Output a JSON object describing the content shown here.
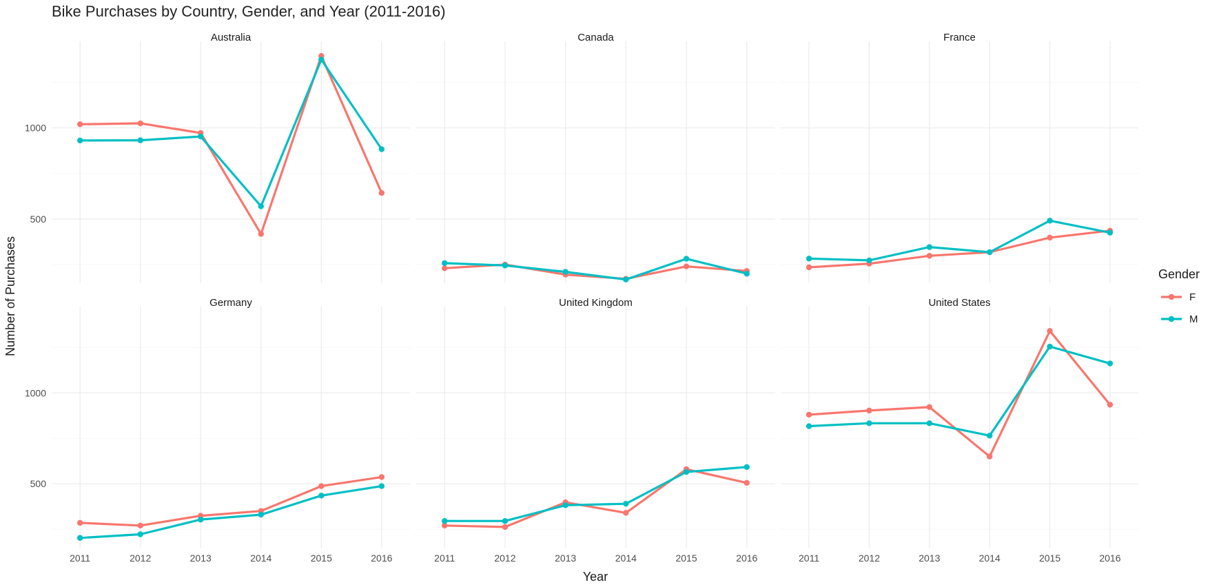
{
  "chart_data": {
    "type": "line",
    "title": "Bike Purchases by Country, Gender, and Year (2011-2016)",
    "xlabel": "Year",
    "ylabel": "Number of Purchases",
    "x": [
      2011,
      2012,
      2013,
      2014,
      2015,
      2016
    ],
    "x_ticks": [
      "2011",
      "2012",
      "2013",
      "2014",
      "2015",
      "2016"
    ],
    "y_ticks": [
      500,
      1000
    ],
    "y_tick_labels": [
      "500",
      "1000"
    ],
    "ylim": [
      148,
      1475
    ],
    "grid": true,
    "legend": {
      "title": "Gender",
      "position": "right",
      "entries": [
        {
          "name": "F",
          "color": "#F8766D"
        },
        {
          "name": "M",
          "color": "#00BFC4"
        }
      ]
    },
    "layout": "facet_wrap 2 rows x 3 columns, shared axes",
    "panels": [
      {
        "title": "Australia",
        "series": [
          {
            "name": "F",
            "color": "#F8766D",
            "values": [
              1020,
              1025,
              972,
              418,
              1395,
              643
            ]
          },
          {
            "name": "M",
            "color": "#00BFC4",
            "values": [
              931,
              932,
              953,
              570,
              1375,
              883
            ]
          }
        ]
      },
      {
        "title": "Canada",
        "series": [
          {
            "name": "F",
            "color": "#F8766D",
            "values": [
              230,
              250,
              195,
              172,
              240,
              215
            ]
          },
          {
            "name": "M",
            "color": "#00BFC4",
            "values": [
              258,
              245,
              210,
              168,
              282,
              200
            ]
          }
        ]
      },
      {
        "title": "France",
        "series": [
          {
            "name": "F",
            "color": "#F8766D",
            "values": [
              235,
              255,
              298,
              318,
              398,
              436
            ]
          },
          {
            "name": "M",
            "color": "#00BFC4",
            "values": [
              283,
              273,
              346,
              318,
              491,
              425
            ]
          }
        ]
      },
      {
        "title": "Germany",
        "series": [
          {
            "name": "F",
            "color": "#F8766D",
            "values": [
              285,
              270,
              324,
              350,
              487,
              537
            ]
          },
          {
            "name": "M",
            "color": "#00BFC4",
            "values": [
              202,
              222,
              303,
              330,
              435,
              487
            ]
          }
        ]
      },
      {
        "title": "United Kingdom",
        "series": [
          {
            "name": "F",
            "color": "#F8766D",
            "values": [
              270,
              262,
              398,
              340,
              580,
              505
            ]
          },
          {
            "name": "M",
            "color": "#00BFC4",
            "values": [
              295,
              295,
              382,
              390,
              565,
              592
            ]
          }
        ]
      },
      {
        "title": "United States",
        "series": [
          {
            "name": "F",
            "color": "#F8766D",
            "values": [
              880,
              903,
              922,
              650,
              1341,
              935
            ]
          },
          {
            "name": "M",
            "color": "#00BFC4",
            "values": [
              817,
              833,
              833,
              765,
              1255,
              1162
            ]
          }
        ]
      }
    ]
  }
}
